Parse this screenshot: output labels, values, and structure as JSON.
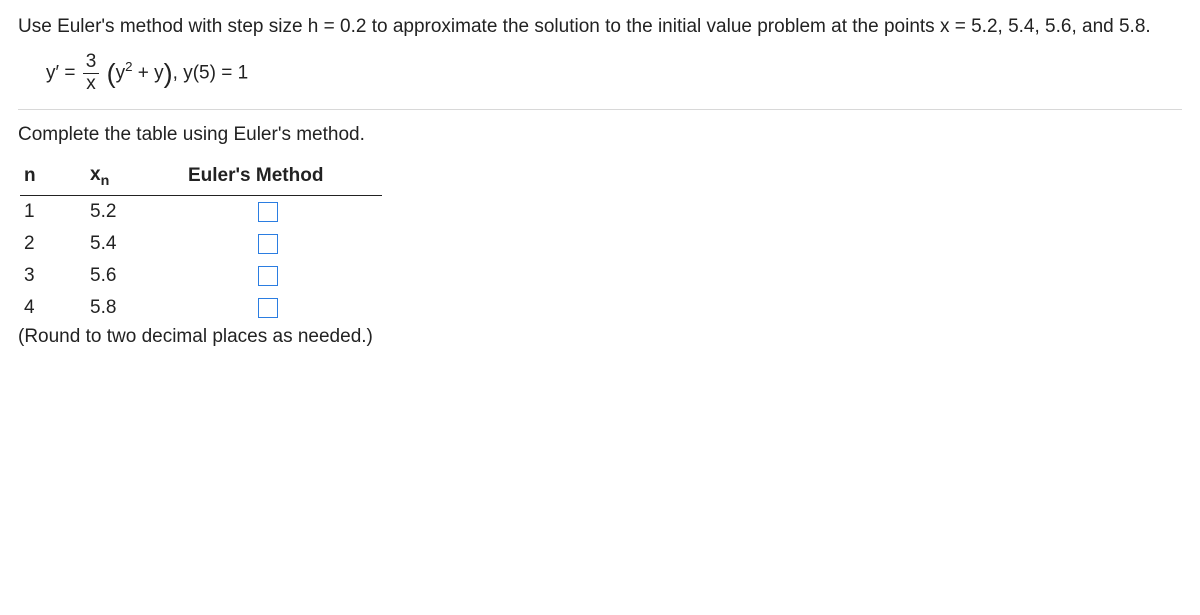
{
  "prompt": "Use Euler's method with step size h = 0.2 to approximate the solution to the initial value problem at the points x = 5.2, 5.4, 5.6, and 5.8.",
  "equation": {
    "lhs": "y′ =",
    "frac_num": "3",
    "frac_den": "x",
    "paren_open": "(",
    "y_squared_base": "y",
    "y_squared_exp": "2",
    "plus_y": " + y",
    "paren_close": ")",
    "comma": ", ",
    "ic": "y(5) = 1"
  },
  "instruction": "Complete the table using Euler's method.",
  "table": {
    "headers": {
      "n": "n",
      "xn_base": "x",
      "xn_sub": "n",
      "method": "Euler's Method"
    },
    "rows": [
      {
        "n": "1",
        "xn": "5.2"
      },
      {
        "n": "2",
        "xn": "5.4"
      },
      {
        "n": "3",
        "xn": "5.6"
      },
      {
        "n": "4",
        "xn": "5.8"
      }
    ]
  },
  "note": "(Round to two decimal places as needed.)"
}
